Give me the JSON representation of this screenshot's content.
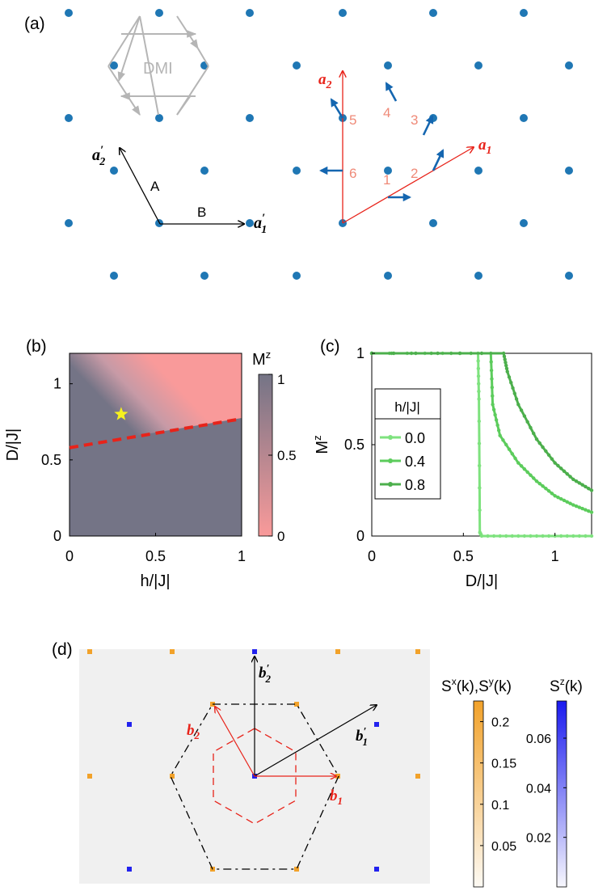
{
  "panel_a": {
    "label": "(a)",
    "dmi_label": "DMI",
    "prime_vectors": {
      "a1": "a",
      "a1_sub": "1",
      "a2": "a",
      "a2_sub": "2",
      "A": "A",
      "B": "B"
    },
    "lattice_vectors": {
      "a1": "a",
      "a1_sub": "1",
      "a2": "a",
      "a2_sub": "2"
    },
    "site_numbers": [
      "1",
      "2",
      "3",
      "4",
      "5",
      "6"
    ],
    "colors": {
      "lattice": "#1f77b4",
      "red": "#e8231a",
      "salmon": "#ef8a78",
      "gray": "#b5b5b5",
      "spin": "#1466b0"
    }
  },
  "panel_b": {
    "label": "(b)",
    "xlabel": "h/|J|",
    "ylabel": "D/|J|",
    "xticks": [
      "0",
      "0.5",
      "1"
    ],
    "yticks": [
      "0",
      "0.5",
      "1"
    ],
    "colorbar_label": "M",
    "colorbar_label_sup": "z",
    "colorbar_ticks": [
      "0",
      "0.5",
      "1"
    ],
    "colors": {
      "high": "#747486",
      "low": "#f99a9a",
      "boundary": "#e8231a",
      "star": "#f7f11e"
    }
  },
  "panel_c": {
    "label": "(c)",
    "xlabel": "D/|J|",
    "ylabel": "M",
    "ylabel_sup": "z",
    "xticks": [
      "0",
      "0.5",
      "1"
    ],
    "yticks": [
      "0",
      "0.5",
      "1"
    ],
    "legend_title": "h/|J|",
    "legend_entries": [
      "0.0",
      "0.4",
      "0.8"
    ]
  },
  "chart_data": [
    {
      "type": "heatmap",
      "title": "",
      "xlabel": "h/|J|",
      "ylabel": "D/|J|",
      "xlim": [
        0,
        1
      ],
      "ylim": [
        0,
        1.2
      ],
      "colorbar": {
        "label": "M^z",
        "range": [
          0,
          1
        ]
      },
      "phase_boundary": {
        "h": [
          0,
          1
        ],
        "D": [
          0.58,
          0.77
        ]
      },
      "marker": {
        "shape": "star",
        "h": 0.3,
        "D": 0.8
      }
    },
    {
      "type": "line",
      "xlabel": "D/|J|",
      "ylabel": "M^z",
      "xlim": [
        0,
        1.2
      ],
      "ylim": [
        0,
        1
      ],
      "series": [
        {
          "name": "0.0",
          "color": "#7ee27e",
          "x": [
            0,
            0.58,
            0.585,
            0.59,
            0.6,
            0.8,
            1.0,
            1.2
          ],
          "values": [
            1,
            1,
            0.75,
            0.02,
            0.0,
            0.0,
            0.0,
            0.0
          ]
        },
        {
          "name": "0.4",
          "color": "#5ccc5c",
          "x": [
            0,
            0.65,
            0.66,
            0.7,
            0.8,
            0.9,
            1.0,
            1.1,
            1.2
          ],
          "values": [
            1,
            1,
            0.72,
            0.55,
            0.4,
            0.3,
            0.22,
            0.17,
            0.13
          ]
        },
        {
          "name": "0.8",
          "color": "#4caf4c",
          "x": [
            0,
            0.72,
            0.74,
            0.8,
            0.9,
            1.0,
            1.1,
            1.2
          ],
          "values": [
            1,
            1,
            0.9,
            0.72,
            0.53,
            0.4,
            0.31,
            0.25
          ]
        }
      ]
    },
    {
      "type": "heatmap",
      "title": "",
      "colorbars": [
        {
          "label": "S^x(k),S^y(k)",
          "ticks": [
            0.05,
            0.1,
            0.15,
            0.2
          ],
          "max": 0.225,
          "color": "#f2a22a"
        },
        {
          "label": "S^z(k)",
          "ticks": [
            0.02,
            0.04,
            0.06
          ],
          "max": 0.075,
          "color": "#1a1aef"
        }
      ]
    }
  ],
  "panel_d": {
    "label": "(d)",
    "colorbar1_label": "S",
    "colorbar1_sup1": "x",
    "colorbar1_mid": "(k),S",
    "colorbar1_sup2": "y",
    "colorbar1_end": "(k)",
    "colorbar1_ticks": [
      "0.05",
      "0.1",
      "0.15",
      "0.2"
    ],
    "colorbar2_label": "S",
    "colorbar2_sup": "z",
    "colorbar2_end": "(k)",
    "colorbar2_ticks": [
      "0.02",
      "0.04",
      "0.06"
    ],
    "vectors": {
      "b1": "b",
      "b1_sub": "1",
      "b2": "b",
      "b2_sub": "2",
      "b1p": "b",
      "b1p_sub": "1",
      "b2p": "b",
      "b2p_sub": "2"
    },
    "colors": {
      "orange": "#f2a22a",
      "blue": "#2222ee",
      "bg": "#f0f0f0"
    }
  }
}
